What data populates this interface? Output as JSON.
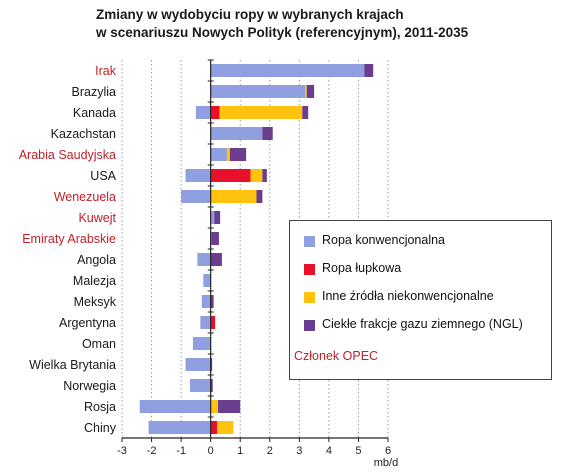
{
  "chart_data": {
    "type": "bar",
    "orientation": "horizontal",
    "stacked": true,
    "title": [
      "Zmiany w wydobyciu ropy w wybranych krajach",
      "w scenariuszu Nowych Polityk (referencyjnym), 2011-2035"
    ],
    "xlabel": "mb/d",
    "xlim": [
      -3,
      6
    ],
    "xticks": [
      -3,
      -2,
      -1,
      0,
      1,
      2,
      3,
      4,
      5,
      6
    ],
    "grid": "vertical dotted",
    "legend_placement": "right-middle",
    "categories": [
      "Irak",
      "Brazylia",
      "Kanada",
      "Kazachstan",
      "Arabia Saudyjska",
      "USA",
      "Wenezuela",
      "Kuwejt",
      "Emiraty Arabskie",
      "Angola",
      "Malezja",
      "Meksyk",
      "Argentyna",
      "Oman",
      "Wielka Brytania",
      "Norwegia",
      "Rosja",
      "Chiny"
    ],
    "opec_members": [
      "Irak",
      "Arabia Saudyjska",
      "Wenezuela",
      "Kuwejt",
      "Emiraty Arabskie"
    ],
    "series": [
      {
        "name": "Ropa konwencjonalna",
        "color": "#8f9fe0",
        "values": [
          5.2,
          3.2,
          -0.5,
          1.75,
          0.55,
          -0.85,
          -1.0,
          0.12,
          0.03,
          -0.45,
          -0.25,
          -0.3,
          -0.35,
          -0.6,
          -0.85,
          -0.7,
          -2.4,
          -2.1
        ]
      },
      {
        "name": "Ropa łupkowa",
        "color": "#e8102a",
        "values": [
          0,
          0,
          0.3,
          0,
          0,
          1.35,
          0,
          0,
          0,
          0,
          0,
          0,
          0.15,
          0,
          0,
          0,
          0,
          0.22
        ]
      },
      {
        "name": "Inne źródła niekonwencjonalne",
        "color": "#ffc20e",
        "values": [
          0,
          0.05,
          2.8,
          0,
          0.1,
          0.4,
          1.55,
          0,
          0,
          0,
          0,
          0,
          0,
          0,
          0,
          0,
          0.25,
          0.55
        ]
      },
      {
        "name": "Ciekłe frakcje gazu ziemnego (NGL)",
        "color": "#6a3d8f",
        "values": [
          0.3,
          0.25,
          0.2,
          0.35,
          0.55,
          0.15,
          0.2,
          0.2,
          0.25,
          0.38,
          0.0,
          0.1,
          0.0,
          0.0,
          0.05,
          0.07,
          0.75,
          0.0
        ]
      }
    ],
    "legend_note": "Członek OPEC"
  },
  "colors": {
    "opec_label": "#c0202a",
    "normal_label": "#1a1a1a",
    "grid": "#9a9a9a"
  }
}
